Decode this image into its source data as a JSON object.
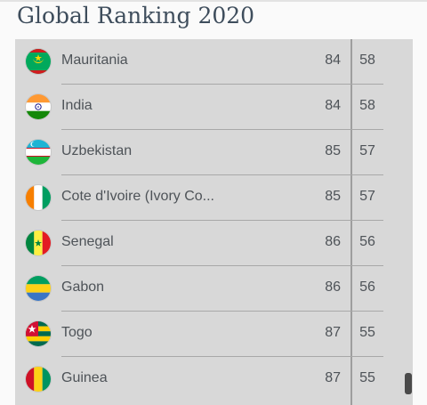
{
  "header": {
    "title": "Global Ranking 2020"
  },
  "rows": [
    {
      "country": "Mauritania",
      "rank": "84",
      "score": "58",
      "flag_icon": "mauritania-flag"
    },
    {
      "country": "India",
      "rank": "84",
      "score": "58",
      "flag_icon": "india-flag"
    },
    {
      "country": "Uzbekistan",
      "rank": "85",
      "score": "57",
      "flag_icon": "uzbekistan-flag"
    },
    {
      "country": "Cote d'Ivoire (Ivory Co...",
      "rank": "85",
      "score": "57",
      "flag_icon": "cote-divoire-flag"
    },
    {
      "country": "Senegal",
      "rank": "86",
      "score": "56",
      "flag_icon": "senegal-flag"
    },
    {
      "country": "Gabon",
      "rank": "86",
      "score": "56",
      "flag_icon": "gabon-flag"
    },
    {
      "country": "Togo",
      "rank": "87",
      "score": "55",
      "flag_icon": "togo-flag"
    },
    {
      "country": "Guinea",
      "rank": "87",
      "score": "55",
      "flag_icon": "guinea-flag"
    }
  ],
  "colors": {
    "panel": "#d8d8d8",
    "text": "#4e5358",
    "title": "#3e4d5c"
  }
}
